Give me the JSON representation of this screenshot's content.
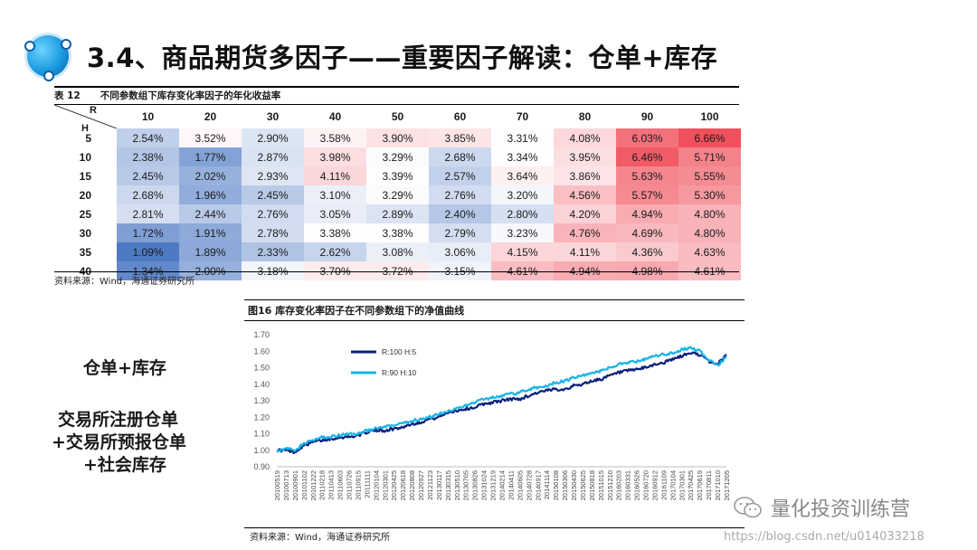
{
  "title": "3.4、商品期货多因子——重要因子解读：仓单+库存",
  "table": {
    "label": "表 12",
    "caption": "不同参数组下库存变化率因子的年化收益率",
    "corner_r": "R",
    "corner_h": "H",
    "columns": [
      "10",
      "20",
      "30",
      "40",
      "50",
      "60",
      "70",
      "80",
      "90",
      "100"
    ],
    "rows": [
      {
        "h": "5",
        "cells": [
          "2.54%",
          "3.52%",
          "2.90%",
          "3.58%",
          "3.90%",
          "3.85%",
          "3.31%",
          "4.08%",
          "6.03%",
          "6.66%"
        ]
      },
      {
        "h": "10",
        "cells": [
          "2.38%",
          "1.77%",
          "2.87%",
          "3.98%",
          "3.29%",
          "2.68%",
          "3.34%",
          "3.95%",
          "6.46%",
          "5.71%"
        ]
      },
      {
        "h": "15",
        "cells": [
          "2.45%",
          "2.02%",
          "2.93%",
          "4.11%",
          "3.39%",
          "2.57%",
          "3.64%",
          "3.86%",
          "5.63%",
          "5.55%"
        ]
      },
      {
        "h": "20",
        "cells": [
          "2.68%",
          "1.96%",
          "2.45%",
          "3.10%",
          "3.29%",
          "2.76%",
          "3.20%",
          "4.56%",
          "5.57%",
          "5.30%"
        ]
      },
      {
        "h": "25",
        "cells": [
          "2.81%",
          "2.44%",
          "2.76%",
          "3.05%",
          "2.89%",
          "2.40%",
          "2.80%",
          "4.20%",
          "4.94%",
          "4.80%"
        ]
      },
      {
        "h": "30",
        "cells": [
          "1.72%",
          "1.91%",
          "2.78%",
          "3.38%",
          "3.38%",
          "2.79%",
          "3.23%",
          "4.76%",
          "4.69%",
          "4.80%"
        ]
      },
      {
        "h": "35",
        "cells": [
          "1.09%",
          "1.89%",
          "2.33%",
          "2.62%",
          "3.08%",
          "3.06%",
          "4.15%",
          "4.11%",
          "4.36%",
          "4.63%"
        ]
      },
      {
        "h": "40",
        "cells": [
          "1.34%",
          "2.00%",
          "3.18%",
          "3.70%",
          "3.72%",
          "3.15%",
          "4.61%",
          "4.94%",
          "4.98%",
          "4.61%"
        ]
      }
    ],
    "source": "资料来源：Wind，海通证券研究所"
  },
  "side": {
    "line1": "仓单+库存",
    "line2": "交易所注册仓单",
    "line3": "+交易所预报仓单",
    "line4": "+社会库存"
  },
  "chart_data": {
    "type": "line",
    "title": "图16 库存变化率因子在不同参数组下的净值曲线",
    "ylim": [
      0.9,
      1.7
    ],
    "yticks": [
      "0.90",
      "1.00",
      "1.10",
      "1.20",
      "1.30",
      "1.40",
      "1.50",
      "1.60",
      "1.70"
    ],
    "x": [
      "20100519",
      "20100713",
      "20100901",
      "20101102",
      "20101222",
      "20110218",
      "20110413",
      "20110603",
      "20110726",
      "20110915",
      "20111111",
      "20120104",
      "20120301",
      "20120425",
      "20120618",
      "20120808",
      "20120927",
      "20121123",
      "20130117",
      "20130315",
      "20130510",
      "20130705",
      "20130826",
      "20131024",
      "20131219",
      "20140214",
      "20140411",
      "20140605",
      "20140728",
      "20140917",
      "20141114",
      "20150108",
      "20150306",
      "20150430",
      "20150625",
      "20150818",
      "20151015",
      "20151210",
      "20160203",
      "20160331",
      "20160526",
      "20160720",
      "20160912",
      "20161109",
      "20170104",
      "20170301",
      "20170425",
      "20170619",
      "20170811",
      "20171010",
      "20171205"
    ],
    "series": [
      {
        "name": "R:100  H:5",
        "color": "#0a1f7a",
        "values": [
          1.0,
          1.0,
          0.99,
          1.03,
          1.05,
          1.06,
          1.07,
          1.08,
          1.08,
          1.09,
          1.11,
          1.12,
          1.12,
          1.13,
          1.14,
          1.16,
          1.17,
          1.19,
          1.2,
          1.23,
          1.24,
          1.25,
          1.26,
          1.28,
          1.29,
          1.3,
          1.31,
          1.31,
          1.33,
          1.35,
          1.36,
          1.37,
          1.37,
          1.39,
          1.4,
          1.42,
          1.43,
          1.45,
          1.47,
          1.48,
          1.49,
          1.5,
          1.52,
          1.53,
          1.55,
          1.57,
          1.59,
          1.58,
          1.54,
          1.52,
          1.58
        ]
      },
      {
        "name": "R:90  H:10",
        "color": "#19b4e8",
        "values": [
          1.0,
          1.01,
          1.0,
          1.04,
          1.06,
          1.08,
          1.08,
          1.09,
          1.1,
          1.1,
          1.12,
          1.13,
          1.14,
          1.15,
          1.16,
          1.18,
          1.19,
          1.2,
          1.22,
          1.24,
          1.25,
          1.27,
          1.29,
          1.31,
          1.32,
          1.33,
          1.34,
          1.35,
          1.37,
          1.38,
          1.39,
          1.41,
          1.42,
          1.44,
          1.45,
          1.47,
          1.48,
          1.5,
          1.52,
          1.53,
          1.54,
          1.55,
          1.57,
          1.58,
          1.59,
          1.61,
          1.62,
          1.6,
          1.55,
          1.51,
          1.57
        ]
      }
    ],
    "source": "资料来源：Wind，海通证券研究所"
  },
  "watermark": {
    "brand": "量化投资训练营",
    "url": "https://blog.csdn.net/u014033218"
  }
}
